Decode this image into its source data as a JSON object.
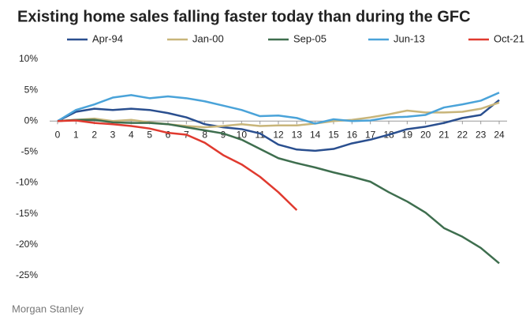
{
  "chart_data": {
    "type": "line",
    "title": "Existing home sales falling faster today than during the GFC",
    "source": "Morgan Stanley",
    "x": [
      0,
      1,
      2,
      3,
      4,
      5,
      6,
      7,
      8,
      9,
      10,
      11,
      12,
      13,
      14,
      15,
      16,
      17,
      18,
      19,
      20,
      21,
      22,
      23,
      24
    ],
    "xticks": [
      0,
      1,
      2,
      3,
      4,
      5,
      6,
      7,
      8,
      9,
      10,
      11,
      12,
      13,
      14,
      15,
      16,
      17,
      18,
      19,
      20,
      21,
      22,
      23,
      24
    ],
    "xlim": [
      0,
      24
    ],
    "ylim": [
      -25,
      10
    ],
    "yticks": [
      {
        "value": -25,
        "label": "-25%"
      },
      {
        "value": -20,
        "label": "-20%"
      },
      {
        "value": -15,
        "label": "-15%"
      },
      {
        "value": -10,
        "label": "-10%"
      },
      {
        "value": -5,
        "label": "-5%"
      },
      {
        "value": 0,
        "label": "0%"
      },
      {
        "value": 5,
        "label": "5%"
      },
      {
        "value": 10,
        "label": "10%"
      }
    ],
    "grid": false,
    "legend": "top",
    "series": [
      {
        "name": "Apr-94",
        "color": "#2a4f8f",
        "values": [
          0,
          1.5,
          2,
          1.8,
          2,
          1.8,
          1.3,
          0.6,
          -0.5,
          -1,
          -1.3,
          -2,
          -3.8,
          -4.6,
          -4.8,
          -4.5,
          -3.6,
          -3,
          -2.2,
          -1.3,
          -0.9,
          -0.3,
          0.5,
          1,
          3.4
        ]
      },
      {
        "name": "Jan-00",
        "color": "#c8b57a",
        "values": [
          0,
          0.2,
          0.4,
          0,
          0.2,
          -0.2,
          -0.5,
          -0.8,
          -1,
          -0.8,
          -0.5,
          -0.8,
          -0.7,
          -0.7,
          -0.4,
          0,
          0.2,
          0.6,
          1.1,
          1.7,
          1.4,
          1.4,
          1.5,
          2,
          3
        ]
      },
      {
        "name": "Sep-05",
        "color": "#3e6e4e",
        "values": [
          0,
          0.2,
          0.2,
          -0.2,
          -0.3,
          -0.3,
          -0.5,
          -1,
          -1.5,
          -2,
          -3,
          -4.5,
          -6,
          -6.8,
          -7.5,
          -8.3,
          -9,
          -9.8,
          -11.5,
          -13,
          -14.8,
          -17.3,
          -18.7,
          -20.5,
          -23
        ]
      },
      {
        "name": "Jun-13",
        "color": "#4aa3d9",
        "values": [
          0,
          1.8,
          2.7,
          3.8,
          4.2,
          3.7,
          4,
          3.7,
          3.2,
          2.5,
          1.8,
          0.8,
          0.9,
          0.5,
          -0.4,
          0.3,
          0,
          0.1,
          0.6,
          0.7,
          1,
          2.2,
          2.7,
          3.3,
          4.6
        ]
      },
      {
        "name": "Oct-21",
        "color": "#e03a2f",
        "values": [
          0,
          0.1,
          -0.3,
          -0.5,
          -0.8,
          -1.2,
          -1.9,
          -2.2,
          -3.5,
          -5.5,
          -7,
          -9,
          -11.5,
          -14.4,
          null,
          null,
          null,
          null,
          null,
          null,
          null,
          null,
          null,
          null,
          null
        ]
      }
    ]
  }
}
